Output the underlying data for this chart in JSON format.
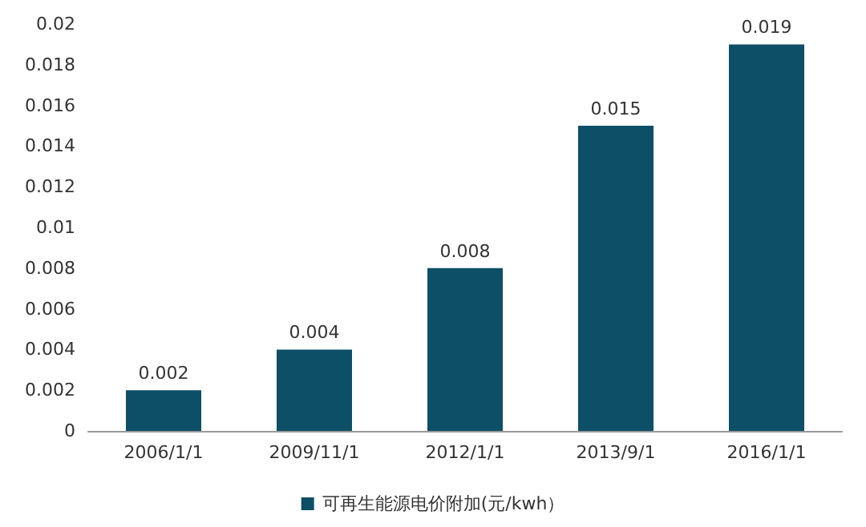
{
  "chart_data": {
    "type": "bar",
    "categories": [
      "2006/1/1",
      "2009/11/1",
      "2012/1/1",
      "2013/9/1",
      "2016/1/1"
    ],
    "series": [
      {
        "name": "可再生能源电价附加(元/kwh）",
        "color": "#0d4f66",
        "values": [
          0.002,
          0.004,
          0.008,
          0.015,
          0.019
        ]
      }
    ],
    "ylim": [
      0,
      0.02
    ],
    "yticks": [
      0,
      0.002,
      0.004,
      0.006,
      0.008,
      0.01,
      0.012,
      0.014,
      0.016,
      0.018,
      0.02
    ],
    "data_labels": true,
    "legend": "bottom",
    "grid": false
  }
}
